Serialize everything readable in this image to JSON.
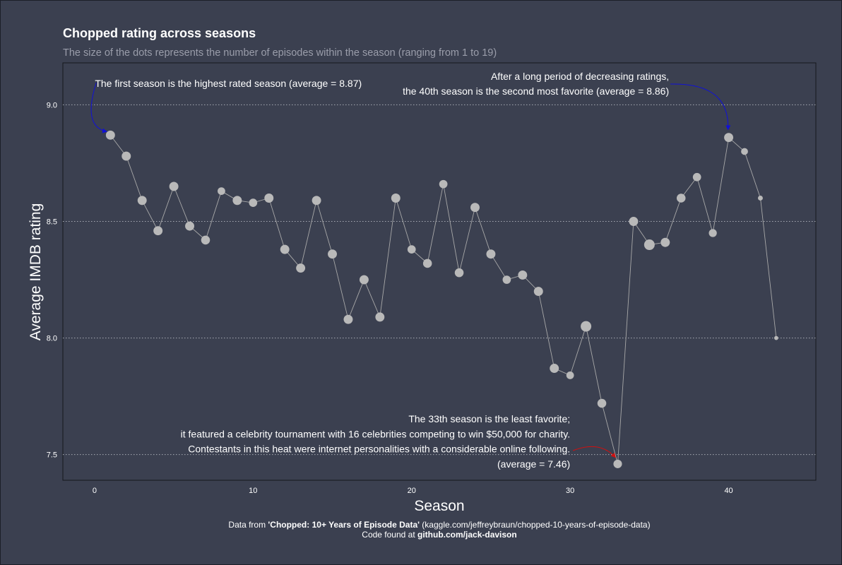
{
  "chart_data": {
    "type": "scatter",
    "title": "Chopped rating across seasons",
    "subtitle": "The size of the dots represents the number of episodes within the season (ranging from 1 to 19)",
    "xlabel": "Season",
    "ylabel": "Average IMDB rating",
    "xlim": [
      -2,
      45.5
    ],
    "ylim": [
      7.39,
      9.18
    ],
    "x_ticks": [
      0,
      10,
      20,
      30,
      40
    ],
    "y_ticks": [
      7.5,
      8.0,
      8.5,
      9.0
    ],
    "x_tick_labels": [
      "0",
      "10",
      "20",
      "30",
      "40"
    ],
    "y_tick_labels": [
      "7.5",
      "8.0",
      "8.5",
      "9.0"
    ],
    "grid": "horizontal-dotted",
    "points": [
      {
        "season": 1,
        "rating": 8.87,
        "episodes": 13
      },
      {
        "season": 2,
        "rating": 8.78,
        "episodes": 13
      },
      {
        "season": 3,
        "rating": 8.59,
        "episodes": 13
      },
      {
        "season": 4,
        "rating": 8.46,
        "episodes": 13
      },
      {
        "season": 5,
        "rating": 8.65,
        "episodes": 13
      },
      {
        "season": 6,
        "rating": 8.48,
        "episodes": 13
      },
      {
        "season": 7,
        "rating": 8.42,
        "episodes": 12
      },
      {
        "season": 8,
        "rating": 8.63,
        "episodes": 8
      },
      {
        "season": 9,
        "rating": 8.59,
        "episodes": 13
      },
      {
        "season": 10,
        "rating": 8.58,
        "episodes": 10
      },
      {
        "season": 11,
        "rating": 8.6,
        "episodes": 13
      },
      {
        "season": 12,
        "rating": 8.38,
        "episodes": 13
      },
      {
        "season": 13,
        "rating": 8.3,
        "episodes": 13
      },
      {
        "season": 14,
        "rating": 8.59,
        "episodes": 13
      },
      {
        "season": 15,
        "rating": 8.36,
        "episodes": 13
      },
      {
        "season": 16,
        "rating": 8.08,
        "episodes": 13
      },
      {
        "season": 17,
        "rating": 8.25,
        "episodes": 13
      },
      {
        "season": 18,
        "rating": 8.09,
        "episodes": 13
      },
      {
        "season": 19,
        "rating": 8.6,
        "episodes": 13
      },
      {
        "season": 20,
        "rating": 8.38,
        "episodes": 10
      },
      {
        "season": 21,
        "rating": 8.32,
        "episodes": 12
      },
      {
        "season": 22,
        "rating": 8.66,
        "episodes": 10
      },
      {
        "season": 23,
        "rating": 8.28,
        "episodes": 12
      },
      {
        "season": 24,
        "rating": 8.56,
        "episodes": 13
      },
      {
        "season": 25,
        "rating": 8.36,
        "episodes": 13
      },
      {
        "season": 26,
        "rating": 8.25,
        "episodes": 10
      },
      {
        "season": 27,
        "rating": 8.27,
        "episodes": 13
      },
      {
        "season": 28,
        "rating": 8.2,
        "episodes": 13
      },
      {
        "season": 29,
        "rating": 7.87,
        "episodes": 13
      },
      {
        "season": 30,
        "rating": 7.84,
        "episodes": 8
      },
      {
        "season": 31,
        "rating": 8.05,
        "episodes": 19
      },
      {
        "season": 32,
        "rating": 7.72,
        "episodes": 12
      },
      {
        "season": 33,
        "rating": 7.46,
        "episodes": 11
      },
      {
        "season": 34,
        "rating": 8.5,
        "episodes": 13
      },
      {
        "season": 35,
        "rating": 8.4,
        "episodes": 19
      },
      {
        "season": 36,
        "rating": 8.41,
        "episodes": 13
      },
      {
        "season": 37,
        "rating": 8.6,
        "episodes": 12
      },
      {
        "season": 38,
        "rating": 8.69,
        "episodes": 10
      },
      {
        "season": 39,
        "rating": 8.45,
        "episodes": 9
      },
      {
        "season": 40,
        "rating": 8.86,
        "episodes": 13
      },
      {
        "season": 41,
        "rating": 8.8,
        "episodes": 6
      },
      {
        "season": 42,
        "rating": 8.6,
        "episodes": 2
      },
      {
        "season": 43,
        "rating": 8.0,
        "episodes": 1
      }
    ],
    "annotations": [
      {
        "id": "first",
        "lines": [
          "The first season is the highest rated season (average = 8.87)"
        ],
        "target": {
          "season": 1,
          "rating": 8.87
        },
        "arrow_color": "#1010d8"
      },
      {
        "id": "fortieth",
        "lines": [
          "After a long period of decreasing ratings,",
          "the 40th season is the second most favorite (average = 8.86)"
        ],
        "target": {
          "season": 40,
          "rating": 8.86
        },
        "arrow_color": "#1010d8"
      },
      {
        "id": "thirtythird",
        "lines": [
          "The 33th season is the least favorite;",
          "it featured a celebrity tournament with 16 celebrities competing to win $50,000 for charity.",
          "Contestants in this heat were internet personalities with a considerable online following.",
          "(average = 7.46)"
        ],
        "target": {
          "season": 33,
          "rating": 7.46
        },
        "arrow_color": "#d01010"
      }
    ],
    "caption": {
      "line1": [
        {
          "text": "Data from ",
          "bold": false
        },
        {
          "text": "'Chopped: 10+ Years of Episode Data'",
          "bold": true
        },
        {
          "text": " (kaggle.com/jeffreybraun/chopped-10-years-of-episode-data)",
          "bold": false
        }
      ],
      "line2": [
        {
          "text": "Code found at ",
          "bold": false
        },
        {
          "text": "github.com/jack-davison",
          "bold": true
        }
      ]
    },
    "colors": {
      "background": "#3b4050",
      "points": "#b9b9b9",
      "line": "#a8a8a8",
      "grid": "#a8abb5",
      "text": "#ffffff",
      "subtitle": "#9a9daa"
    }
  }
}
